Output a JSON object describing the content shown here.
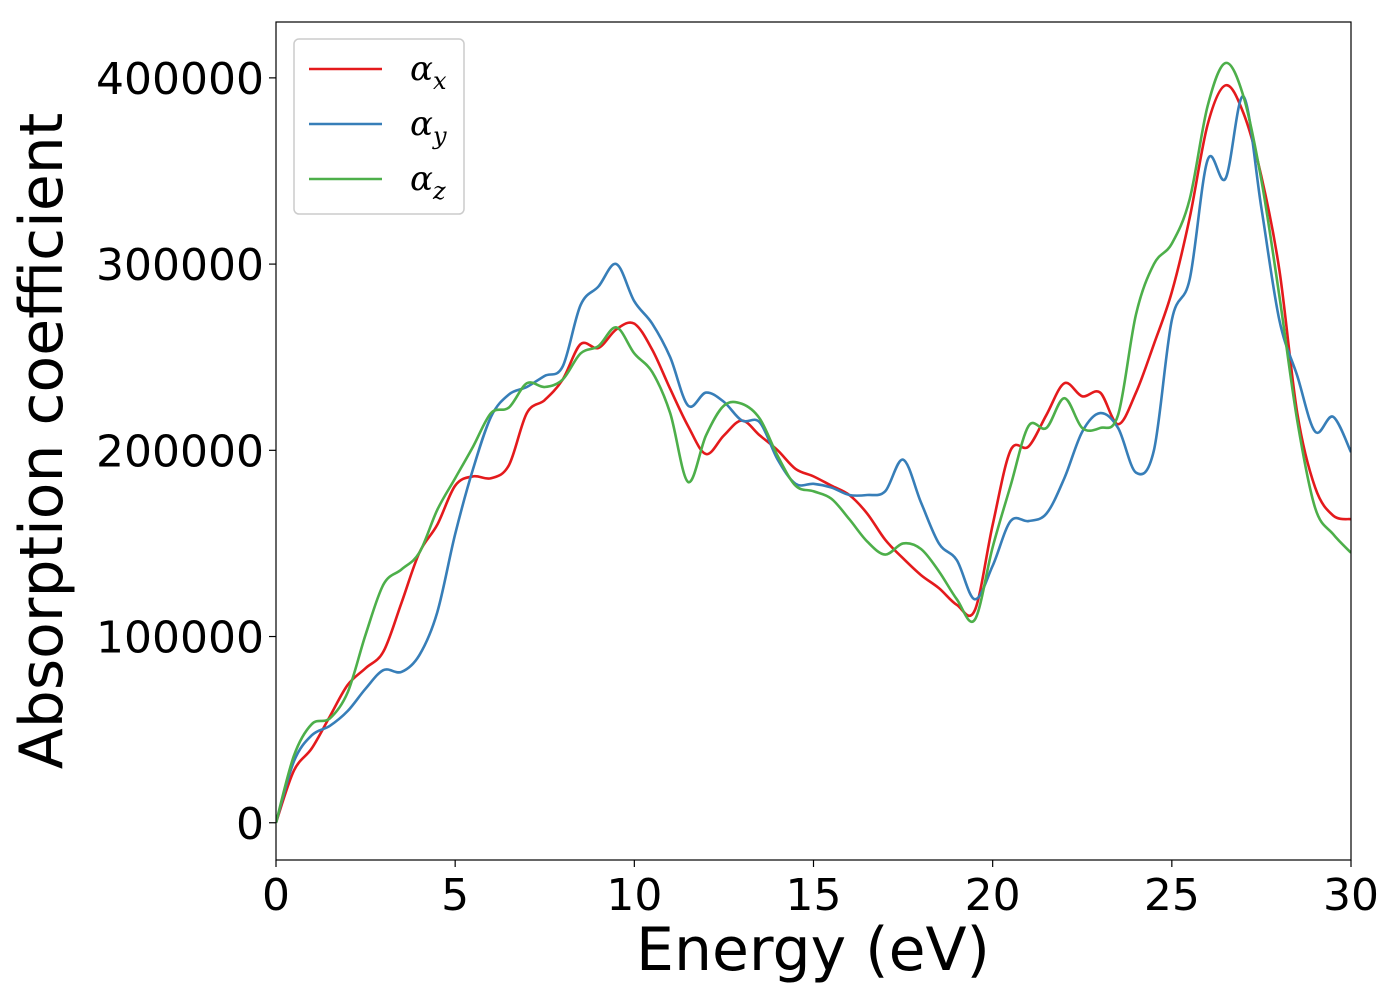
{
  "chart_data": {
    "type": "line",
    "xlabel": "Energy (eV)",
    "ylabel": "Absorption coefficient",
    "xlim": [
      0,
      30
    ],
    "ylim": [
      -20000,
      430000
    ],
    "xticks": [
      0,
      5,
      10,
      15,
      20,
      25,
      30
    ],
    "yticks": [
      0,
      100000,
      200000,
      300000,
      400000
    ],
    "grid": false,
    "legend_position": "top-left",
    "series": [
      {
        "name": "αx",
        "symbol": "α",
        "subscript": "x",
        "color": "#e41a1c",
        "x": [
          0,
          0.5,
          1,
          1.5,
          2,
          2.5,
          3,
          3.5,
          4,
          4.5,
          5,
          5.5,
          6,
          6.5,
          7,
          7.5,
          8,
          8.5,
          9,
          9.5,
          10,
          10.5,
          11,
          11.5,
          12,
          12.5,
          13,
          13.5,
          14,
          14.5,
          15,
          15.5,
          16,
          16.5,
          17,
          17.5,
          18,
          18.5,
          19,
          19.5,
          20,
          20.5,
          21,
          21.5,
          22,
          22.5,
          23,
          23.5,
          24,
          24.5,
          25,
          25.5,
          26,
          26.5,
          27,
          27.5,
          28,
          28.5,
          29,
          29.5,
          30
        ],
        "y": [
          0,
          28000,
          40000,
          57000,
          74000,
          83000,
          92000,
          118000,
          145000,
          160000,
          181000,
          186000,
          185000,
          192000,
          220000,
          227000,
          238000,
          257000,
          255000,
          265000,
          268000,
          254000,
          233000,
          213000,
          198000,
          208000,
          216000,
          208000,
          200000,
          190000,
          186000,
          181000,
          176000,
          166000,
          152000,
          142000,
          133000,
          126000,
          117000,
          114000,
          160000,
          200000,
          202000,
          219000,
          236000,
          229000,
          231000,
          214000,
          231000,
          257000,
          285000,
          325000,
          375000,
          396000,
          381000,
          347000,
          297000,
          220000,
          180000,
          165000,
          163000
        ]
      },
      {
        "name": "αy",
        "symbol": "α",
        "subscript": "y",
        "color": "#377eb8",
        "x": [
          0,
          0.5,
          1,
          1.5,
          2,
          2.5,
          3,
          3.5,
          4,
          4.5,
          5,
          5.5,
          6,
          6.5,
          7,
          7.5,
          8,
          8.5,
          9,
          9.5,
          10,
          10.5,
          11,
          11.5,
          12,
          12.5,
          13,
          13.5,
          14,
          14.5,
          15,
          15.5,
          16,
          16.5,
          17,
          17.5,
          18,
          18.5,
          19,
          19.5,
          20,
          20.5,
          21,
          21.5,
          22,
          22.5,
          23,
          23.5,
          24,
          24.5,
          25,
          25.5,
          26,
          26.5,
          27,
          27.5,
          28,
          28.5,
          29,
          29.5,
          30
        ],
        "y": [
          0,
          33000,
          47000,
          52000,
          60000,
          72000,
          82000,
          81000,
          90000,
          113000,
          155000,
          190000,
          218000,
          230000,
          234000,
          240000,
          245000,
          278000,
          288000,
          300000,
          280000,
          268000,
          250000,
          224000,
          231000,
          226000,
          216000,
          215000,
          195000,
          182000,
          182000,
          180000,
          176000,
          176000,
          178000,
          195000,
          172000,
          150000,
          141000,
          120000,
          138000,
          162000,
          162000,
          166000,
          185000,
          210000,
          220000,
          212000,
          188000,
          200000,
          270000,
          292000,
          356000,
          346000,
          390000,
          330000,
          270000,
          240000,
          210000,
          218000,
          199000
        ]
      },
      {
        "name": "αz",
        "symbol": "α",
        "subscript": "z",
        "color": "#4daf4a",
        "x": [
          0,
          0.5,
          1,
          1.5,
          2,
          2.5,
          3,
          3.5,
          4,
          4.5,
          5,
          5.5,
          6,
          6.5,
          7,
          7.5,
          8,
          8.5,
          9,
          9.5,
          10,
          10.5,
          11,
          11.5,
          12,
          12.5,
          13,
          13.5,
          14,
          14.5,
          15,
          15.5,
          16,
          16.5,
          17,
          17.5,
          18,
          18.5,
          19,
          19.5,
          20,
          20.5,
          21,
          21.5,
          22,
          22.5,
          23,
          23.5,
          24,
          24.5,
          25,
          25.5,
          26,
          26.5,
          27,
          27.5,
          28,
          28.5,
          29,
          29.5,
          30
        ],
        "y": [
          0,
          36000,
          53000,
          56000,
          70000,
          101000,
          128000,
          136000,
          145000,
          168000,
          185000,
          202000,
          220000,
          223000,
          236000,
          234000,
          238000,
          252000,
          256000,
          266000,
          252000,
          242000,
          220000,
          183000,
          208000,
          224000,
          225000,
          217000,
          197000,
          181000,
          178000,
          174000,
          163000,
          151000,
          144000,
          150000,
          147000,
          135000,
          120000,
          109000,
          148000,
          181000,
          213000,
          212000,
          228000,
          212000,
          212000,
          219000,
          273000,
          300000,
          311000,
          335000,
          385000,
          408000,
          390000,
          345000,
          283000,
          216000,
          169000,
          155000,
          145000
        ]
      }
    ]
  }
}
